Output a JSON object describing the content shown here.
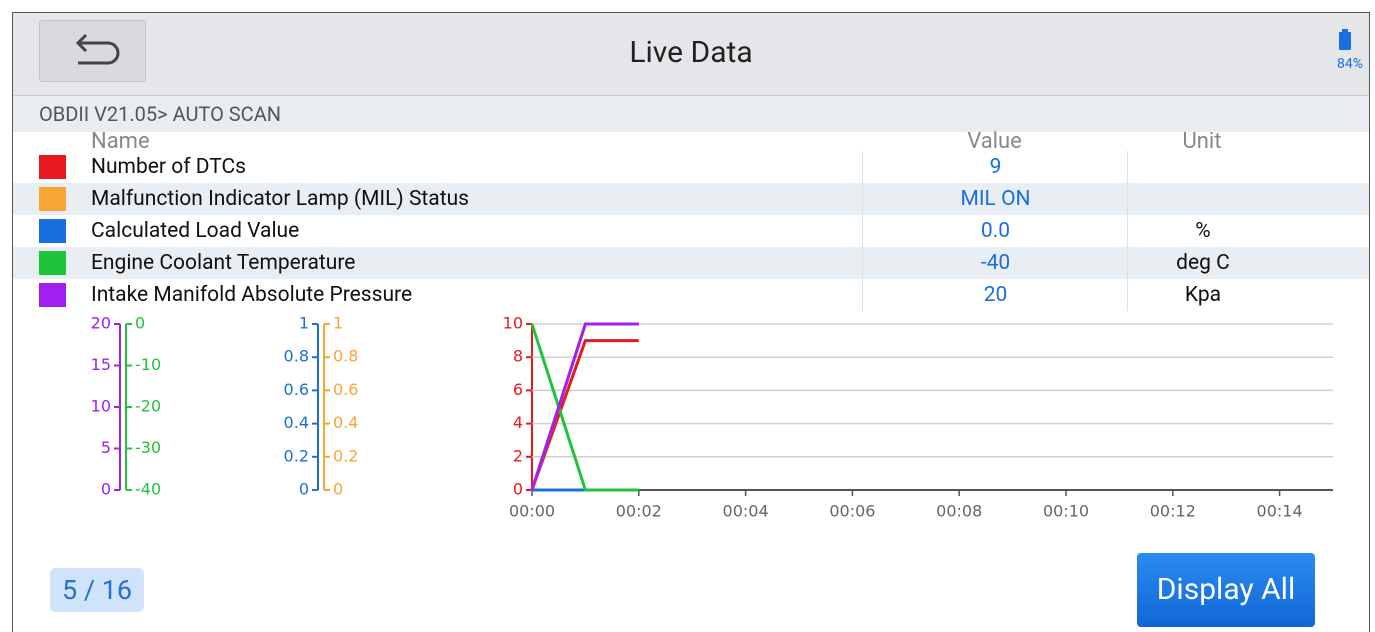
{
  "header": {
    "title": "Live Data",
    "battery": "84%"
  },
  "breadcrumb": "OBDII V21.05> AUTO SCAN",
  "table": {
    "columns": [
      "Name",
      "Value",
      "Unit"
    ],
    "rows": [
      {
        "color": "#e8191c",
        "name": "Number of DTCs",
        "value": "9"
      },
      {
        "color": "#f9a533",
        "name": "Malfunction Indicator Lamp (MIL) Status",
        "value": "MIL ON"
      },
      {
        "color": "#1a6fe0",
        "name": "Calculated Load Value",
        "value": "0.0",
        "unit": "%"
      },
      {
        "color": "#1ec43a",
        "name": "Engine Coolant Temperature",
        "value": "-40",
        "unit": "deg C"
      },
      {
        "color": "#a020f0",
        "name": "Intake Manifold Absolute Pressure",
        "value": "20",
        "unit": "Kpa"
      }
    ]
  },
  "chart_data": {
    "type": "line",
    "x": [
      0,
      1,
      2
    ],
    "xlim": [
      0,
      15
    ],
    "xticks": [
      {
        "value": 0,
        "label": "00:00"
      },
      {
        "value": 2,
        "label": "00:02"
      },
      {
        "value": 4,
        "label": "00:04"
      },
      {
        "value": 6,
        "label": "00:06"
      },
      {
        "value": 8,
        "label": "00:08"
      },
      {
        "value": 10,
        "label": "00:10"
      },
      {
        "value": 12,
        "label": "00:12"
      },
      {
        "value": 14,
        "label": "00:14"
      }
    ],
    "grid": true,
    "series": [
      {
        "color": "#e8191c",
        "values": [
          0,
          9,
          9
        ],
        "ylim": [
          0,
          10
        ],
        "yticks": [
          0,
          2,
          4,
          6,
          8,
          10
        ]
      },
      {
        "color": "#f9a533",
        "values": [
          0,
          1,
          1
        ],
        "ylim": [
          0,
          1
        ],
        "yticks": [
          0,
          0.2,
          0.4,
          0.6,
          0.8,
          1
        ]
      },
      {
        "color": "#1a6fe0",
        "values": [
          0,
          0,
          0
        ],
        "ylim": [
          0,
          1
        ],
        "yticks": [
          0,
          0.2,
          0.4,
          0.6,
          0.8,
          1
        ]
      },
      {
        "color": "#1ec43a",
        "values": [
          0,
          -40,
          -40
        ],
        "ylim": [
          -40,
          0
        ],
        "yticks": [
          -40,
          -30,
          -20,
          -10,
          0
        ]
      },
      {
        "color": "#a020f0",
        "values": [
          0,
          20,
          20
        ],
        "ylim": [
          0,
          20
        ],
        "yticks": [
          0,
          5,
          10,
          15,
          20
        ]
      }
    ]
  },
  "pager": "5 / 16",
  "button": "Display All"
}
